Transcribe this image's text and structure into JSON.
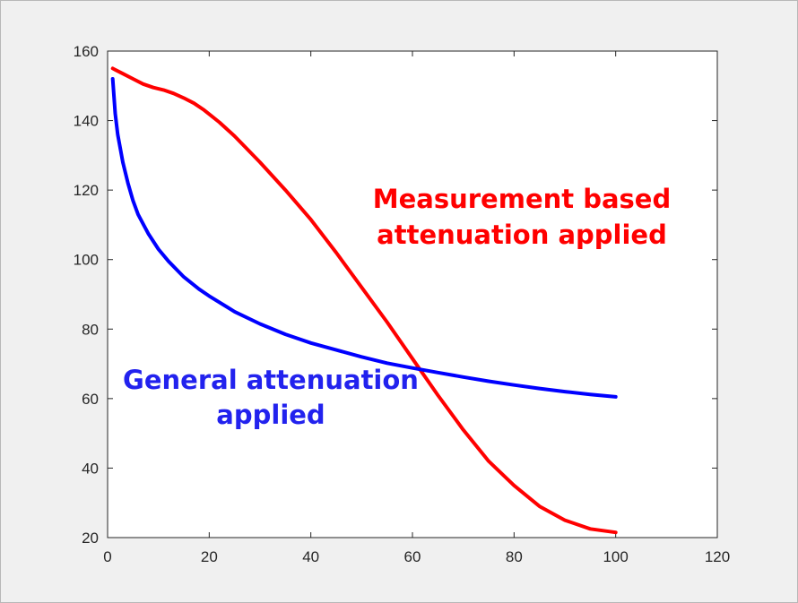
{
  "chart_data": {
    "type": "line",
    "title": "",
    "xlabel": "",
    "ylabel": "",
    "xlim": [
      0,
      120
    ],
    "ylim": [
      20,
      160
    ],
    "xticks": [
      0,
      20,
      40,
      60,
      80,
      100,
      120
    ],
    "yticks": [
      20,
      40,
      60,
      80,
      100,
      120,
      140,
      160
    ],
    "grid": false,
    "series": [
      {
        "color": "#ff0000",
        "x": [
          1,
          3,
          5,
          7,
          9,
          11,
          13,
          15,
          17,
          19,
          22,
          25,
          30,
          35,
          40,
          45,
          50,
          55,
          60,
          65,
          70,
          75,
          80,
          85,
          90,
          95,
          100
        ],
        "y": [
          155,
          153.5,
          152,
          150.5,
          149.5,
          148.8,
          147.8,
          146.5,
          145,
          143,
          139.5,
          135.5,
          128,
          120,
          111.5,
          102,
          92,
          82,
          71.5,
          61,
          51,
          42,
          35,
          29,
          25,
          22.5,
          21.5
        ]
      },
      {
        "color": "#0000ff",
        "x": [
          1,
          1.5,
          2,
          3,
          4,
          5,
          6,
          8,
          10,
          12,
          15,
          18,
          20,
          25,
          30,
          35,
          40,
          45,
          50,
          55,
          60,
          65,
          70,
          75,
          80,
          85,
          90,
          95,
          100
        ],
        "y": [
          152,
          142,
          136,
          128,
          122,
          117,
          113,
          107.5,
          103,
          99.5,
          95,
          91.5,
          89.5,
          85,
          81.5,
          78.5,
          76,
          74,
          72,
          70.2,
          68.8,
          67.5,
          66.2,
          65,
          63.9,
          62.9,
          62,
          61.2,
          60.5
        ]
      }
    ],
    "annotations": [
      {
        "lines": [
          "Measurement based",
          "attenuation applied"
        ],
        "color": "#ff0000"
      },
      {
        "lines": [
          "General attenuation",
          "applied"
        ],
        "color": "#2222ee"
      }
    ]
  }
}
